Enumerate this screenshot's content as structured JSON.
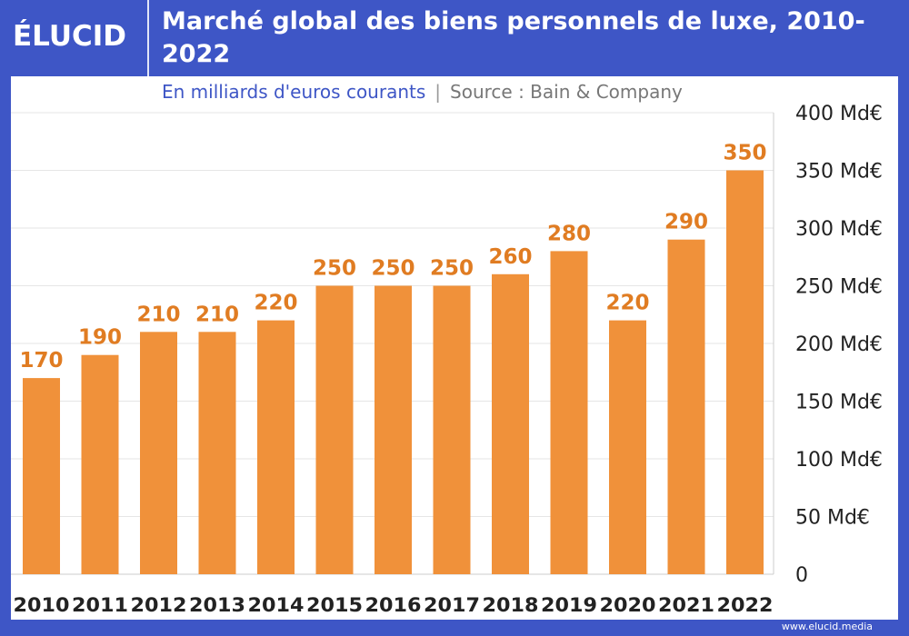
{
  "brand": "ÉLUCID",
  "footer": "www.elucid.media",
  "colors": {
    "background": "#3e56c6",
    "bar": "#f0913a",
    "label": "#e07c22",
    "grid": "#e6e6e6"
  },
  "chart_data": {
    "type": "bar",
    "title": "Marché global des biens personnels de luxe, 2010-2022",
    "subtitle": "En milliards d'euros courants",
    "source": "Source : Bain & Company",
    "categories": [
      "2010",
      "2011",
      "2012",
      "2013",
      "2014",
      "2015",
      "2016",
      "2017",
      "2018",
      "2019",
      "2020",
      "2021",
      "2022"
    ],
    "values": [
      170,
      190,
      210,
      210,
      220,
      250,
      250,
      250,
      260,
      280,
      220,
      290,
      350
    ],
    "ylim": [
      0,
      400
    ],
    "yticks": [
      "0",
      "50 Md€",
      "100 Md€",
      "150 Md€",
      "200 Md€",
      "250 Md€",
      "300 Md€",
      "350 Md€",
      "400 Md€"
    ],
    "ytick_values": [
      0,
      50,
      100,
      150,
      200,
      250,
      300,
      350,
      400
    ],
    "yaxis_position": "right",
    "grid": true
  }
}
